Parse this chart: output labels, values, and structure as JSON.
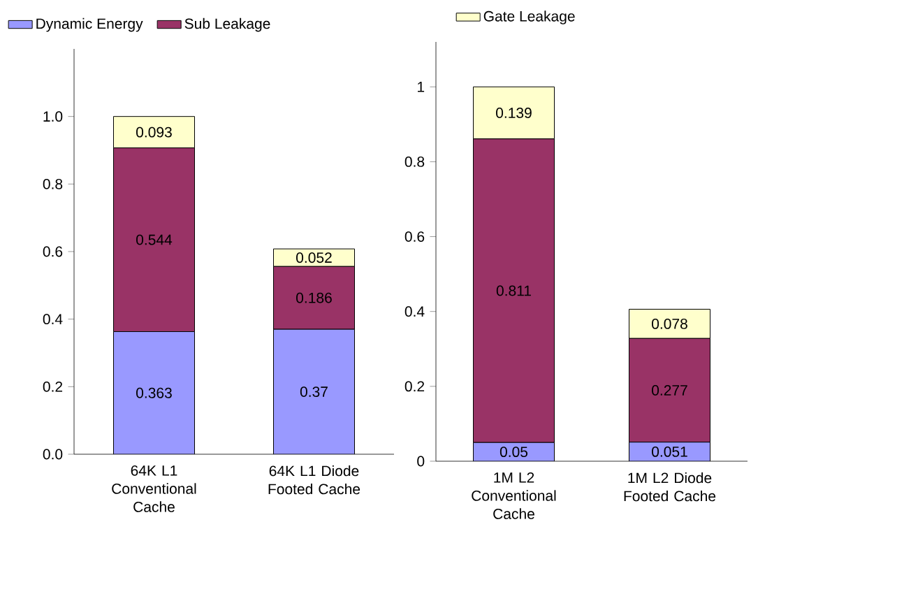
{
  "chart_data": [
    {
      "type": "bar",
      "stacked": true,
      "legend": "top",
      "categories": [
        "64K L1 Conventional Cache",
        "64K L1 Diode Footed Cache"
      ],
      "ylim": [
        0,
        1.2
      ],
      "yticks": [
        {
          "value": 0,
          "label": "0.0"
        },
        {
          "value": 0.2,
          "label": "0.2"
        },
        {
          "value": 0.4,
          "label": "0.4"
        },
        {
          "value": 0.6,
          "label": "0.6"
        },
        {
          "value": 0.8,
          "label": "0.8"
        },
        {
          "value": 1.0,
          "label": "1.0"
        }
      ],
      "series": [
        {
          "name": "Dynamic Energy",
          "color": "#9999ff",
          "values": [
            0.363,
            0.37
          ],
          "value_labels": [
            "0.363",
            "0.37"
          ]
        },
        {
          "name": "Sub Leakage",
          "color": "#993366",
          "values": [
            0.544,
            0.186
          ],
          "value_labels": [
            "0.544",
            "0.186"
          ]
        },
        {
          "color": "#ffffcc",
          "values": [
            0.093,
            0.052
          ],
          "value_labels": [
            "0.093",
            "0.052"
          ]
        }
      ]
    },
    {
      "type": "bar",
      "stacked": true,
      "legend": "top",
      "categories": [
        "1M L2 Conventional Cache",
        "1M L2 Diode Footed Cache"
      ],
      "ylim": [
        0,
        1.12
      ],
      "yticks": [
        0,
        0.2,
        0.4,
        0.6,
        0.8,
        1
      ],
      "series": [
        {
          "color": "#9999ff",
          "values": [
            0.05,
            0.051
          ],
          "value_labels": [
            "0.05",
            "0.051"
          ]
        },
        {
          "color": "#993366",
          "values": [
            0.811,
            0.277
          ],
          "value_labels": [
            "0.811",
            "0.277"
          ]
        },
        {
          "name": "Gate Leakage",
          "color": "#ffffcc",
          "values": [
            0.139,
            0.078
          ],
          "value_labels": [
            "0.139",
            "0.078"
          ]
        }
      ]
    }
  ]
}
